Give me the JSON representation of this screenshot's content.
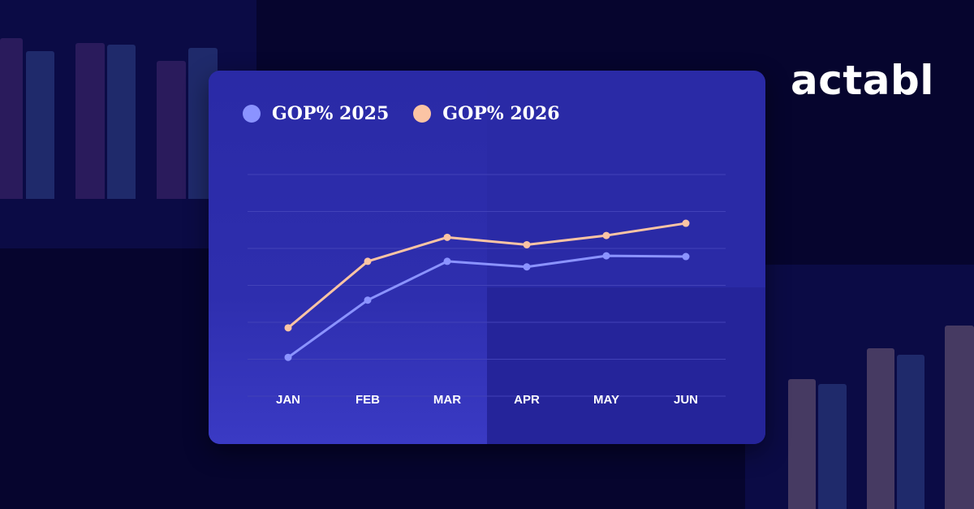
{
  "brand": {
    "name": "actabl"
  },
  "colors": {
    "background": "#06052e",
    "panel": "#0b0b45",
    "card": "#2a2aa6",
    "series_2025": "#8b93ff",
    "series_2026": "#fbc4a4",
    "gridline": "#4242b8",
    "bg_bar_purple": "#2a1b5c",
    "bg_bar_blue": "#1f2a6b",
    "bg_bar_mauve": "#463a62"
  },
  "chart_data": {
    "type": "line",
    "title": "",
    "xlabel": "",
    "ylabel": "",
    "categories": [
      "JAN",
      "FEB",
      "MAR",
      "APR",
      "MAY",
      "JUN"
    ],
    "ylim": [
      0,
      6
    ],
    "grid": true,
    "legend_position": "top-left",
    "series": [
      {
        "name": "GOP% 2025",
        "color": "#8b93ff",
        "values": [
          1.05,
          2.6,
          3.65,
          3.5,
          3.8,
          3.78
        ]
      },
      {
        "name": "GOP% 2026",
        "color": "#fbc4a4",
        "values": [
          1.85,
          3.65,
          4.3,
          4.1,
          4.35,
          4.68
        ]
      }
    ]
  }
}
